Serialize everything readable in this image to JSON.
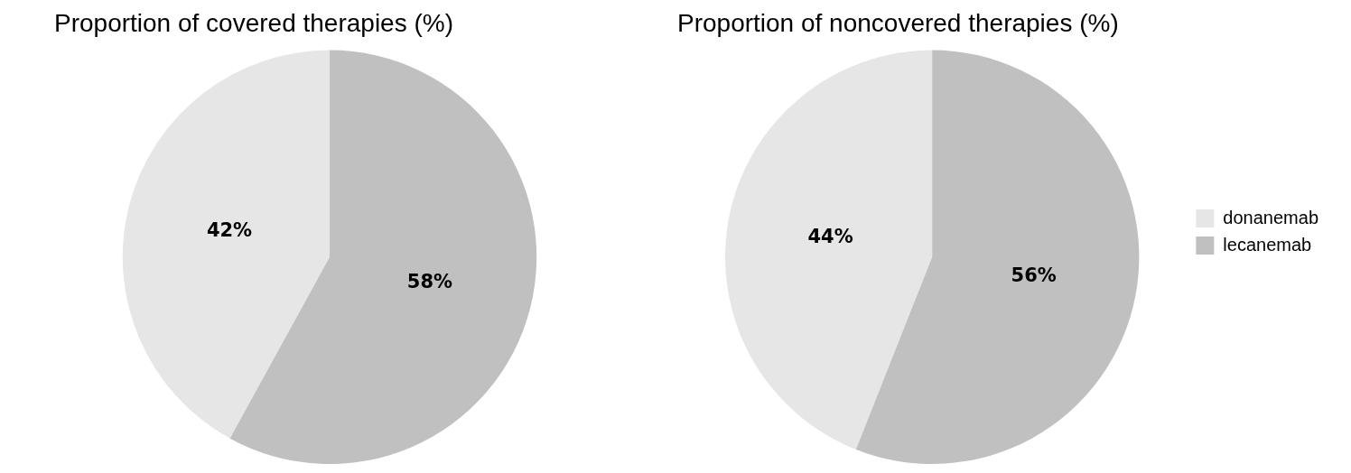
{
  "chart_data": [
    {
      "type": "pie",
      "title": "Proportion of covered therapies (%)",
      "categories": [
        null,
        null
      ],
      "values": [
        42,
        58
      ],
      "colors": [
        "#e6e6e6",
        "#c0c0c0"
      ],
      "value_labels": [
        "42%",
        "58%"
      ],
      "legend": false
    },
    {
      "type": "pie",
      "title": "Proportion of noncovered therapies (%)",
      "categories": [
        "donanemab",
        "lecanemab"
      ],
      "values": [
        44,
        56
      ],
      "colors": [
        "#e6e6e6",
        "#c0c0c0"
      ],
      "value_labels": [
        "44%",
        "56%"
      ],
      "legend": "right"
    }
  ]
}
